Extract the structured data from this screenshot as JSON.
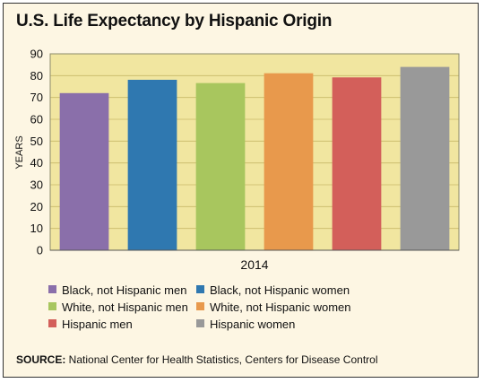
{
  "title": "U.S. Life Expectancy by Hispanic Origin",
  "source_label": "SOURCE:",
  "source_text": " National Center for Health Statistics, Centers for Disease Control",
  "colors": {
    "plot_background": "#f1e6a0",
    "gridline": "#c8b868",
    "frame_background": "#fdf6e3"
  },
  "chart_data": {
    "type": "bar",
    "title": "U.S. Life Expectancy by Hispanic Origin",
    "xlabel": "2014",
    "ylabel": "YEARS",
    "ylim": [
      0,
      90
    ],
    "yticks": [
      0,
      10,
      20,
      30,
      40,
      50,
      60,
      70,
      80,
      90
    ],
    "grid": true,
    "categories": [
      "2014"
    ],
    "series": [
      {
        "name": "Black, not Hispanic men",
        "values": [
          72.0
        ],
        "color": "#8a6faa"
      },
      {
        "name": "Black, not Hispanic women",
        "values": [
          78.1
        ],
        "color": "#2f78b0"
      },
      {
        "name": "White, not Hispanic men",
        "values": [
          76.6
        ],
        "color": "#a8c65e"
      },
      {
        "name": "White, not Hispanic women",
        "values": [
          81.1
        ],
        "color": "#e8994c"
      },
      {
        "name": "Hispanic men",
        "values": [
          79.2
        ],
        "color": "#d35f5a"
      },
      {
        "name": "Hispanic women",
        "values": [
          84.0
        ],
        "color": "#999999"
      }
    ],
    "legend_position": "bottom"
  }
}
